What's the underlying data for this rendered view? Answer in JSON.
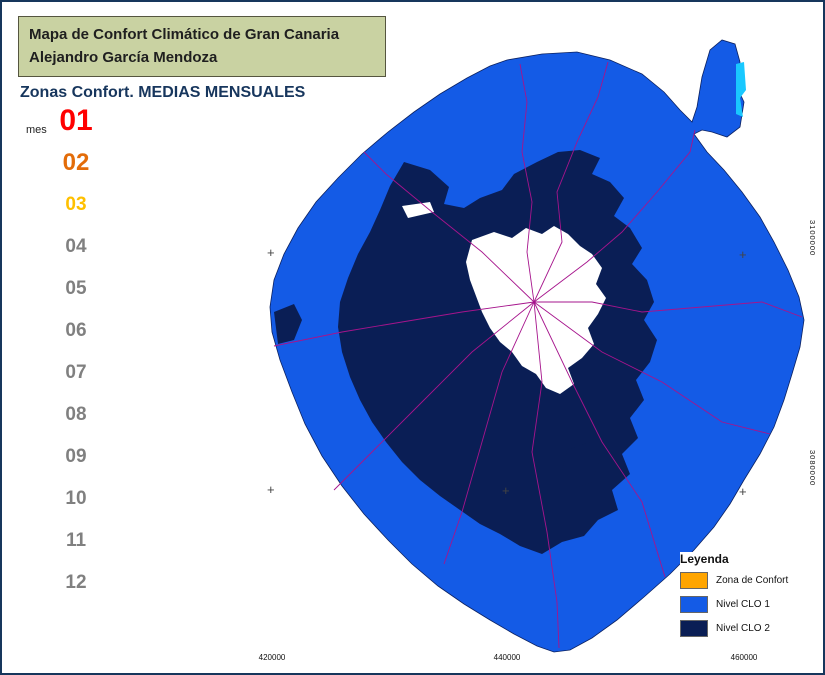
{
  "header": {
    "title_line1": "Mapa de Confort Climático de Gran Canaria",
    "title_line2": "Alejandro García Mendoza",
    "subtitle": "Zonas Confort. MEDIAS MENSUALES"
  },
  "months": {
    "label": "mes",
    "items": [
      {
        "value": "01",
        "color": "#FF0000",
        "size": 30
      },
      {
        "value": "02",
        "color": "#E36C09",
        "size": 24
      },
      {
        "value": "03",
        "color": "#FFC000",
        "size": 19
      },
      {
        "value": "04",
        "color": "#808080",
        "size": 19
      },
      {
        "value": "05",
        "color": "#808080",
        "size": 19
      },
      {
        "value": "06",
        "color": "#808080",
        "size": 19
      },
      {
        "value": "07",
        "color": "#808080",
        "size": 19
      },
      {
        "value": "08",
        "color": "#808080",
        "size": 19
      },
      {
        "value": "09",
        "color": "#808080",
        "size": 19
      },
      {
        "value": "10",
        "color": "#808080",
        "size": 19
      },
      {
        "value": "11",
        "color": "#808080",
        "size": 19
      },
      {
        "value": "12",
        "color": "#808080",
        "size": 19
      }
    ]
  },
  "legend": {
    "title": "Leyenda",
    "items": [
      {
        "label": "Zona de Confort",
        "color": "#FFA500"
      },
      {
        "label": "Nivel CLO 1",
        "color": "#145BE6"
      },
      {
        "label": "Nivel CLO 2",
        "color": "#0A1E55"
      }
    ]
  },
  "map": {
    "x_labels": [
      "420000",
      "440000",
      "460000"
    ],
    "y_labels": [
      "3100000",
      "3080000"
    ],
    "colors": {
      "sea": "#FFFFFF",
      "clo1": "#145BE6",
      "clo2": "#0A1E55",
      "comfort_gap": "#FFFFFF",
      "boundary": "#A6148C",
      "coast": "#0B2161",
      "isleta_detail": "#19C8FF"
    }
  }
}
